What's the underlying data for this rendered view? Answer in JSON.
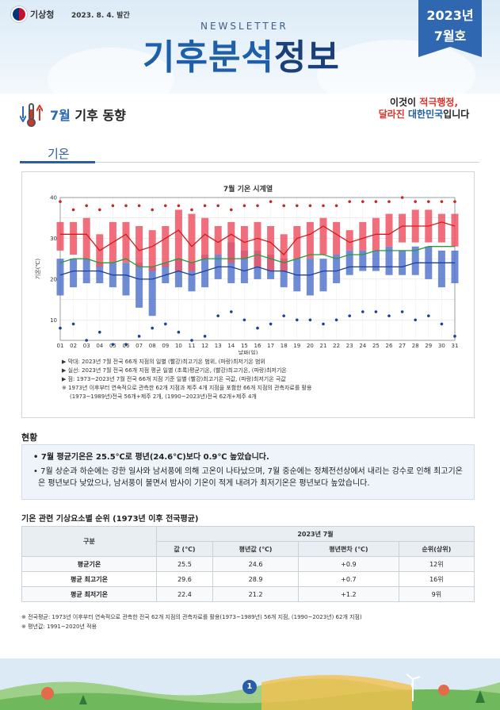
{
  "header": {
    "org_name": "기상청",
    "issue_date": "2023. 8. 4. 발간",
    "newsletter": "NEWSLETTER",
    "title_a": "기후분석",
    "title_b": "정보",
    "ribbon_year": "2023년",
    "ribbon_month": "7월호"
  },
  "section": {
    "month": "7월",
    "topic": " 기후 동향",
    "sub": "기온"
  },
  "promo": {
    "line1_a": "이것이 ",
    "line1_b": "적극행정,",
    "line2_a": "달라진 ",
    "line2_b": "대한민국",
    "line2_c": "입니다"
  },
  "chart_data": {
    "type": "box-timeseries",
    "title": "7월 기온 시계열",
    "xlabel": "날짜(일)",
    "ylabel": "기온(℃)",
    "ylim": [
      5,
      40
    ],
    "yticks": [
      10,
      20,
      30,
      40
    ],
    "x": [
      "01",
      "02",
      "03",
      "04",
      "05",
      "06",
      "07",
      "08",
      "09",
      "10",
      "11",
      "12",
      "13",
      "14",
      "15",
      "16",
      "17",
      "18",
      "19",
      "20",
      "21",
      "22",
      "23",
      "24",
      "25",
      "26",
      "27",
      "28",
      "29",
      "30",
      "31"
    ],
    "max_range": [
      [
        27,
        34
      ],
      [
        26,
        34
      ],
      [
        25,
        35
      ],
      [
        23,
        31
      ],
      [
        24,
        34
      ],
      [
        24,
        34
      ],
      [
        23,
        33
      ],
      [
        22,
        32
      ],
      [
        23,
        33
      ],
      [
        22,
        37
      ],
      [
        22,
        36
      ],
      [
        25,
        35
      ],
      [
        26,
        33
      ],
      [
        24,
        34
      ],
      [
        25,
        33
      ],
      [
        23,
        34
      ],
      [
        22,
        33
      ],
      [
        22,
        31
      ],
      [
        25,
        33
      ],
      [
        25,
        34
      ],
      [
        26,
        35
      ],
      [
        26,
        34
      ],
      [
        27,
        32
      ],
      [
        27,
        34
      ],
      [
        27,
        35
      ],
      [
        28,
        36
      ],
      [
        29,
        36
      ],
      [
        29,
        37
      ],
      [
        29,
        37
      ],
      [
        29,
        36
      ],
      [
        28,
        36
      ]
    ],
    "min_range": [
      [
        16,
        25
      ],
      [
        18,
        25
      ],
      [
        19,
        25
      ],
      [
        19,
        24
      ],
      [
        18,
        24
      ],
      [
        16,
        24
      ],
      [
        13,
        24
      ],
      [
        11,
        23
      ],
      [
        19,
        24
      ],
      [
        18,
        25
      ],
      [
        17,
        24
      ],
      [
        18,
        26
      ],
      [
        20,
        26
      ],
      [
        19,
        29
      ],
      [
        19,
        27
      ],
      [
        20,
        27
      ],
      [
        20,
        26
      ],
      [
        18,
        25
      ],
      [
        17,
        25
      ],
      [
        16,
        25
      ],
      [
        17,
        25
      ],
      [
        19,
        26
      ],
      [
        21,
        27
      ],
      [
        22,
        27
      ],
      [
        22,
        27
      ],
      [
        21,
        28
      ],
      [
        21,
        27
      ],
      [
        21,
        28
      ],
      [
        20,
        28
      ],
      [
        18,
        27
      ],
      [
        19,
        27
      ]
    ],
    "max_line": [
      31,
      31,
      31,
      27,
      29,
      31,
      27,
      28,
      30,
      32,
      28,
      31,
      29,
      31,
      29,
      30,
      29,
      26,
      30,
      31,
      33,
      31,
      29,
      30,
      31,
      31,
      33,
      33,
      33,
      34,
      33
    ],
    "mean_line": [
      24,
      25,
      25,
      24,
      24,
      25,
      23,
      23,
      24,
      25,
      24,
      25,
      25,
      25,
      25,
      26,
      25,
      24,
      25,
      26,
      26,
      25,
      26,
      26,
      27,
      27,
      27,
      27,
      28,
      28,
      28
    ],
    "min_line": [
      21,
      22,
      22,
      22,
      21,
      21,
      20,
      20,
      21,
      22,
      21,
      22,
      23,
      23,
      22,
      23,
      22,
      22,
      21,
      21,
      22,
      22,
      23,
      23,
      23,
      23,
      23,
      24,
      24,
      24,
      24
    ],
    "record_max": [
      39,
      37,
      38,
      37,
      38,
      38,
      38,
      37,
      38,
      38,
      37,
      38,
      38,
      37,
      38,
      38,
      39,
      38,
      38,
      38,
      38,
      38,
      39,
      39,
      39,
      39,
      40,
      39,
      39,
      39,
      39
    ],
    "record_min": [
      8,
      9,
      5,
      7,
      4,
      4,
      6,
      8,
      9,
      7,
      5,
      6,
      11,
      12,
      10,
      8,
      9,
      11,
      10,
      10,
      9,
      10,
      11,
      12,
      12,
      11,
      12,
      10,
      11,
      9,
      6
    ],
    "colors": {
      "max": "#ee5566",
      "min": "#5577cc",
      "max_line": "#cc1f1f",
      "mean_line": "#2a9a3a",
      "min_line": "#1f3f99"
    }
  },
  "chart_notes": [
    "▶ 막대: 2023년 7월 전국 66개 지점의 일별 (빨강)최고기온 범위, (파랑)최저기온 범위",
    "▶ 실선: 2023년 7월 전국 66개 지점 평균 일별 (초록)평균기온, (빨강)최고기온, (파랑)최저기온",
    "▶ 점: 1973~2023년 7월 전국 66개 지점 기준 일별 (빨강)최고기온 극값, (파랑)최저기온 극값",
    "※ 1973년 이후부터 연속적으로 관측한 62개 지점과 제주 4개 지점을 포함한 66개 지점의 관측자료를 활용",
    "(1973~1989년)전국 56개+제주 2개, (1990~2023년)전국 62개+제주 4개"
  ],
  "status": {
    "title": "현황",
    "bullet1": "• 7월 평균기온은 25.5℃로 평년(24.6℃)보다 0.9℃ 높았습니다.",
    "bullet2": "• 7월 상순과 하순에는 강한 일사와 남서풍에 의해 고온이 나타났으며, 7월 중순에는 정체전선상에서 내리는 강수로 인해 최고기온은 평년보다 낮았으나, 남서풍이 불면서 밤사이 기온이 적게 내려가 최저기온은 평년보다 높았습니다."
  },
  "table": {
    "title": "기온 관련 기상요소별 순위 (1973년 이후 전국평균)",
    "col_group": "구분",
    "col_span": "2023년 7월",
    "headers": [
      "값 (℃)",
      "평년값 (℃)",
      "평년편차 (℃)",
      "순위(상위)"
    ],
    "rows": [
      {
        "name": "평균기온",
        "value": "25.5",
        "normal": "24.6",
        "diff": "+0.9",
        "rank": "12위"
      },
      {
        "name": "평균 최고기온",
        "value": "29.6",
        "normal": "28.9",
        "diff": "+0.7",
        "rank": "16위"
      },
      {
        "name": "평균 최저기온",
        "value": "22.4",
        "normal": "21.2",
        "diff": "+1.2",
        "rank": "9위"
      }
    ]
  },
  "footnotes": [
    "※ 전국평균: 1973년 이후부터 연속적으로 관측한 전국 62개 지점의 관측자료를 활용(1973~1989년) 56개 지점, (1990~2023년) 62개 지점)",
    "※ 평년값: 1991~2020년 적용"
  ],
  "page_number": "1"
}
